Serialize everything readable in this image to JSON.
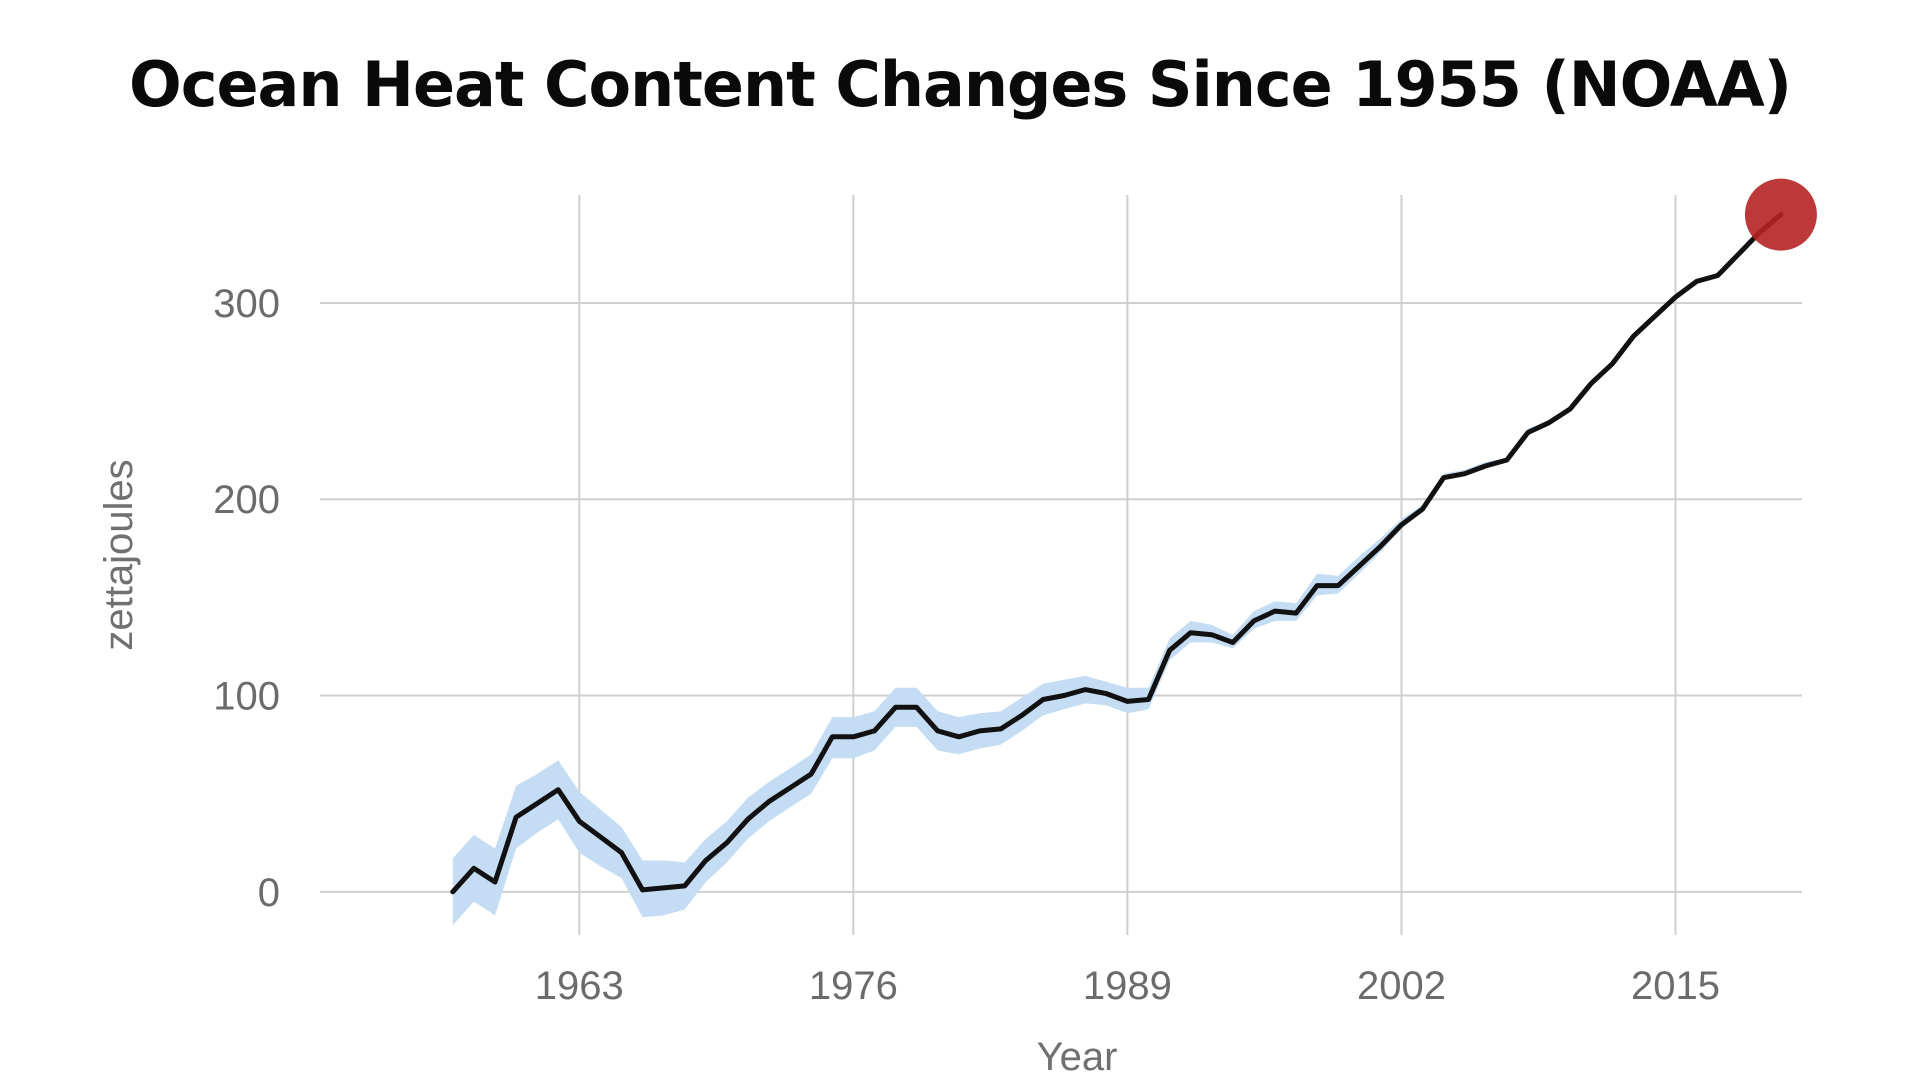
{
  "chart_data": {
    "type": "line",
    "title": "Ocean Heat Content Changes Since 1955 (NOAA)",
    "xlabel": "Year",
    "ylabel": "zettajoules",
    "xlim": [
      1950.7,
      2021
    ],
    "ylim": [
      -22,
      355
    ],
    "x_ticks": [
      1963,
      1976,
      1989,
      2002,
      2015
    ],
    "y_ticks": [
      0,
      100,
      200,
      300
    ],
    "grid": true,
    "colors": {
      "line": "#111111",
      "band": "#c5ddf4",
      "grid": "#cfcfcf",
      "marker": "#b62424"
    },
    "series": [
      {
        "x": [
          1957,
          1958,
          1959,
          1960,
          1961,
          1962,
          1963,
          1964,
          1965,
          1966,
          1967,
          1968,
          1969,
          1970,
          1971,
          1972,
          1973,
          1974,
          1975,
          1976,
          1977,
          1978,
          1979,
          1980,
          1981,
          1982,
          1983,
          1984,
          1985,
          1986,
          1987,
          1988,
          1989,
          1990,
          1991,
          1992,
          1993,
          1994,
          1995,
          1996,
          1997,
          1998,
          1999,
          2000,
          2001,
          2002,
          2003,
          2004,
          2005,
          2006,
          2007,
          2008,
          2009,
          2010,
          2011,
          2012,
          2013,
          2014,
          2015,
          2016,
          2017,
          2018,
          2019
        ],
        "values": [
          0,
          12,
          5,
          38,
          45,
          52,
          36,
          28,
          20,
          1,
          2,
          3,
          16,
          25,
          37,
          46,
          53,
          60,
          79,
          79,
          82,
          94,
          94,
          82,
          79,
          82,
          83,
          90,
          98,
          100,
          103,
          101,
          97,
          98,
          123,
          132,
          131,
          127,
          138,
          143,
          142,
          156,
          156,
          166,
          176,
          187,
          195,
          211,
          213,
          217,
          220,
          234,
          239,
          246,
          259,
          269,
          283,
          293,
          303,
          311,
          314,
          325,
          336
        ],
        "lower": [
          -17,
          -5,
          -12,
          22,
          30,
          37,
          20,
          13,
          7,
          -13,
          -12,
          -9,
          5,
          15,
          27,
          36,
          43,
          50,
          68,
          68,
          72,
          84,
          84,
          72,
          70,
          73,
          75,
          82,
          90,
          93,
          96,
          95,
          91,
          93,
          118,
          127,
          127,
          124,
          134,
          138,
          138,
          151,
          152,
          162,
          173,
          185,
          194,
          210,
          212,
          216,
          219,
          233,
          238,
          245,
          258,
          268,
          282,
          292,
          302,
          310,
          313,
          324,
          335
        ],
        "upper": [
          17,
          29,
          22,
          54,
          60,
          67,
          51,
          42,
          33,
          16,
          16,
          15,
          27,
          36,
          48,
          56,
          63,
          70,
          89,
          89,
          92,
          104,
          104,
          92,
          89,
          91,
          92,
          99,
          106,
          108,
          110,
          107,
          104,
          104,
          129,
          138,
          136,
          131,
          143,
          148,
          147,
          162,
          161,
          171,
          180,
          190,
          197,
          213,
          215,
          219,
          221,
          236,
          240,
          247,
          261,
          270,
          284,
          294,
          304,
          312,
          315,
          326,
          337
        ]
      }
    ],
    "highlight": {
      "x": 2020,
      "y": 345
    }
  }
}
